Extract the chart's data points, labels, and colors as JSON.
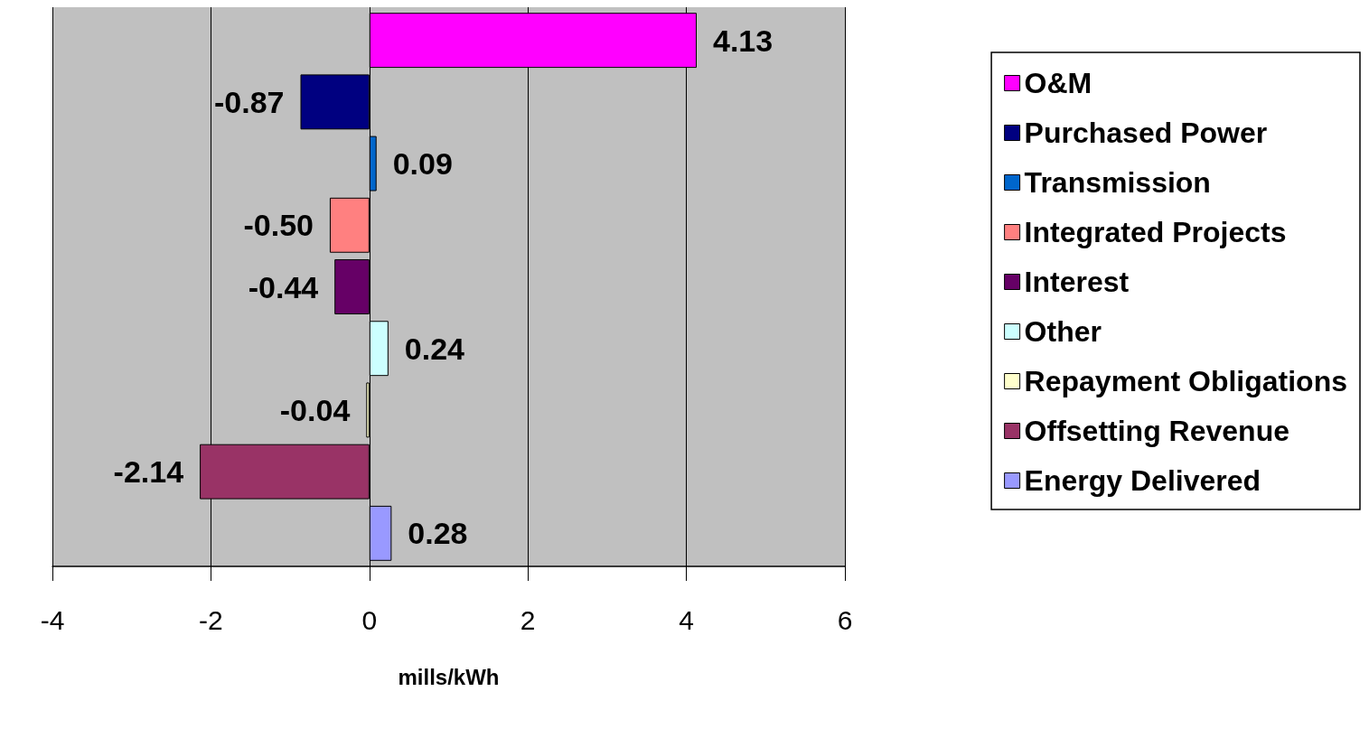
{
  "chart_data": {
    "type": "bar",
    "orientation": "horizontal",
    "xlabel": "mills/kWh",
    "categories": [
      null
    ],
    "series": [
      {
        "name": "O&M",
        "color": "#ff00ff",
        "values": [
          4.13
        ],
        "value_labels": [
          "4.13"
        ]
      },
      {
        "name": "Purchased Power",
        "color": "#000080",
        "values": [
          -0.87
        ],
        "value_labels": [
          "-0.87"
        ]
      },
      {
        "name": "Transmission",
        "color": "#0066cc",
        "values": [
          0.09
        ],
        "value_labels": [
          "0.09"
        ]
      },
      {
        "name": "Integrated Projects",
        "color": "#ff8080",
        "values": [
          -0.5
        ],
        "value_labels": [
          "-0.50"
        ]
      },
      {
        "name": "Interest",
        "color": "#660066",
        "values": [
          -0.44
        ],
        "value_labels": [
          "-0.44"
        ]
      },
      {
        "name": "Other",
        "color": "#ccffff",
        "values": [
          0.24
        ],
        "value_labels": [
          "0.24"
        ]
      },
      {
        "name": "Repayment Obligations",
        "color": "#ffffcc",
        "values": [
          -0.04
        ],
        "value_labels": [
          "-0.04"
        ]
      },
      {
        "name": "Offsetting Revenue",
        "color": "#993366",
        "values": [
          -2.14
        ],
        "value_labels": [
          "-2.14"
        ]
      },
      {
        "name": "Energy Delivered",
        "color": "#9999ff",
        "values": [
          0.28
        ],
        "value_labels": [
          "0.28"
        ]
      }
    ],
    "xlim": [
      -4,
      6
    ],
    "xticks": [
      -4,
      -2,
      0,
      2,
      4,
      6
    ],
    "grid": "x",
    "legend": "right"
  }
}
